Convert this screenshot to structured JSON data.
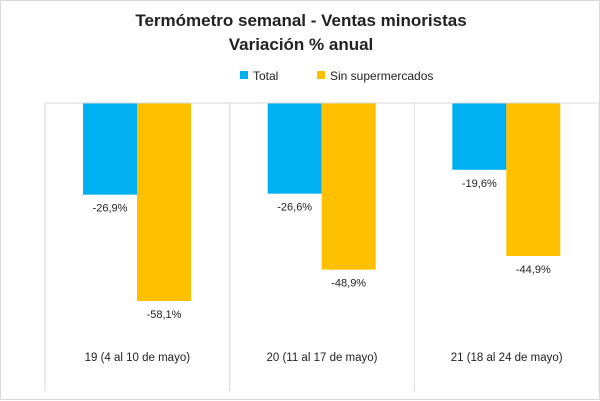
{
  "chart_data": {
    "type": "bar",
    "title": "Termómetro semanal - Ventas minoristas",
    "subtitle": "Variación % anual",
    "categories": [
      "19 (4 al 10 de mayo)",
      "20 (11 al 17 de mayo)",
      "21 (18 al 24 de mayo)"
    ],
    "series": [
      {
        "name": "Total",
        "color": "#00b0f0",
        "values": [
          -26.9,
          -26.6,
          -19.6
        ],
        "labels": [
          "-26,9%",
          "-26,6%",
          "-19,6%"
        ]
      },
      {
        "name": "Sin supermercados",
        "color": "#ffc000",
        "values": [
          -58.1,
          -48.9,
          -44.9
        ],
        "labels": [
          "-58,1%",
          "-48,9%",
          "-44,9%"
        ]
      }
    ],
    "ylim": [
      -70,
      0
    ],
    "legend": "top-center",
    "grid": false,
    "category_dividers": true
  }
}
